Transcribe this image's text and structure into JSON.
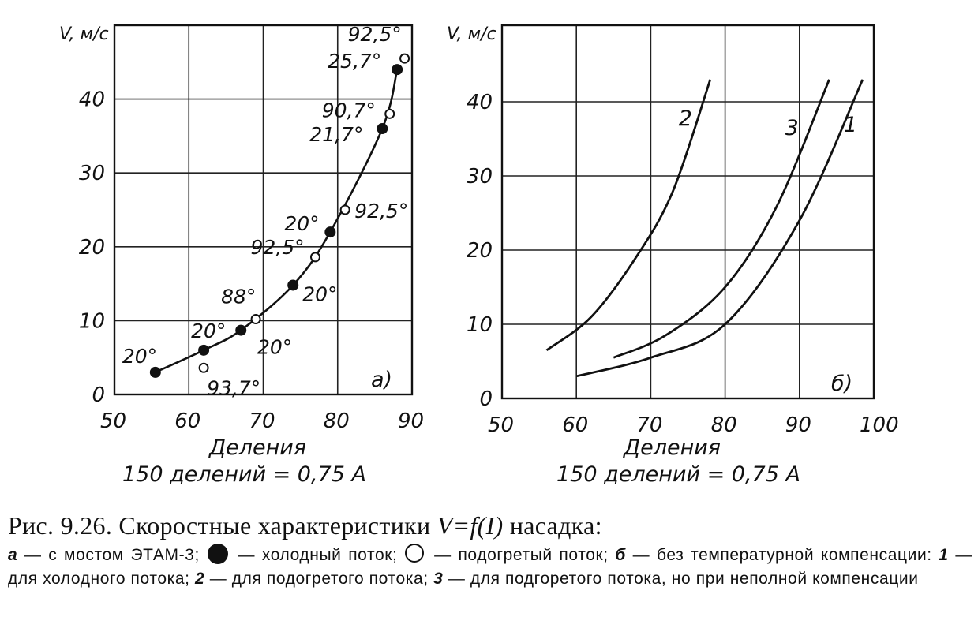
{
  "chart_data": [
    {
      "type": "line",
      "panel_label": "а)",
      "ylabel": "V, м/с",
      "xlabel": "Деления",
      "x_note": "150 делений = 0,75 А",
      "xlim": [
        50,
        90
      ],
      "ylim": [
        0,
        45
      ],
      "x_ticks": [
        "50",
        "60",
        "70",
        "80",
        "90"
      ],
      "y_ticks": [
        "0",
        "10",
        "20",
        "30",
        "40"
      ],
      "grid": true,
      "series": [
        {
          "marker": "filled",
          "points": [
            {
              "x": 55.5,
              "y": 3,
              "label": "20°"
            },
            {
              "x": 62,
              "y": 6,
              "label": "20°"
            },
            {
              "x": 67,
              "y": 8.7,
              "label": ""
            },
            {
              "x": 74,
              "y": 14.8,
              "label": "20°"
            },
            {
              "x": 79,
              "y": 22,
              "label": "20°"
            },
            {
              "x": 86,
              "y": 36,
              "label": "21,7°"
            },
            {
              "x": 88,
              "y": 44,
              "label": "25,7°"
            }
          ]
        },
        {
          "marker": "open",
          "points": [
            {
              "x": 62,
              "y": 3.6,
              "label": "93,7°"
            },
            {
              "x": 69,
              "y": 10.2,
              "label": "88°"
            },
            {
              "x": 77,
              "y": 18.6,
              "label": "92,5°"
            },
            {
              "x": 81,
              "y": 25,
              "label": "92,5°"
            },
            {
              "x": 87,
              "y": 38,
              "label": "90,7°"
            },
            {
              "x": 89,
              "y": 45.5,
              "label": "92,5°"
            }
          ]
        }
      ],
      "extra_labels": [
        "20°"
      ]
    },
    {
      "type": "line",
      "panel_label": "б)",
      "ylabel": "V, м/с",
      "xlabel": "Деления",
      "x_note": "150 делений = 0,75 А",
      "xlim": [
        50,
        100
      ],
      "ylim": [
        0,
        45
      ],
      "x_ticks": [
        "50",
        "60",
        "70",
        "80",
        "90",
        "100"
      ],
      "y_ticks": [
        "0",
        "10",
        "20",
        "30",
        "40"
      ],
      "grid": true,
      "series": [
        {
          "name": "1",
          "points": [
            [
              60,
              3
            ],
            [
              70,
              5.5
            ],
            [
              80,
              10
            ],
            [
              90,
              24
            ],
            [
              98.5,
              43
            ]
          ]
        },
        {
          "name": "2",
          "points": [
            [
              56,
              6.5
            ],
            [
              62,
              11
            ],
            [
              68,
              19
            ],
            [
              73,
              28
            ],
            [
              78,
              43
            ]
          ]
        },
        {
          "name": "3",
          "points": [
            [
              65,
              5.5
            ],
            [
              72,
              8.5
            ],
            [
              80,
              15
            ],
            [
              87,
              26
            ],
            [
              94,
              43
            ]
          ]
        }
      ]
    }
  ],
  "caption": {
    "title_prefix": "Рис. 9.26. Скоростные характеристики ",
    "title_formula": "V=f(I)",
    "title_suffix": " насадка:",
    "line1_a": "а",
    "line1_text1": " — с мостом ЭТАМ-3;",
    "line1_filled": " — холодный поток;",
    "line1_open": " — подогретый поток; ",
    "line1_b": "б",
    "line1_text2": " — без температурной компенсации: ",
    "n1": "1",
    "t1": " — для холодного потока; ",
    "n2": "2",
    "t2": " — для подогретого потока; ",
    "n3": "3",
    "t3": " — для подгоретого потока, но при неполной компенсации"
  }
}
